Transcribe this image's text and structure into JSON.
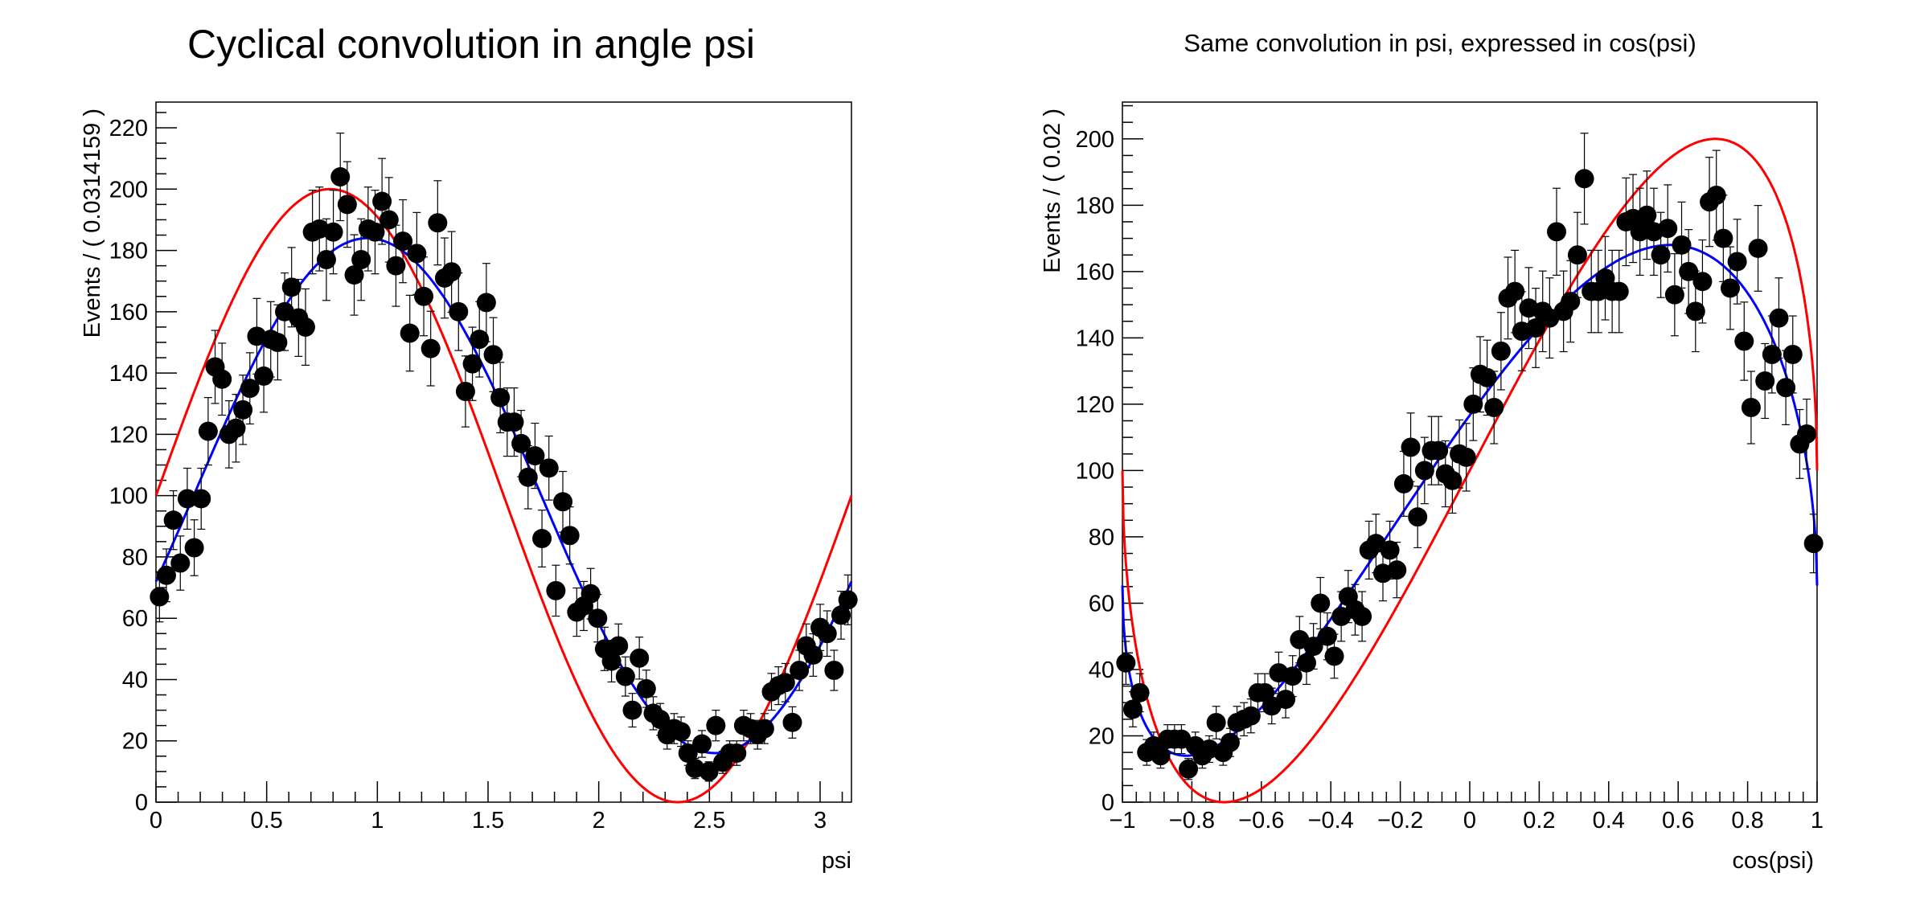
{
  "chart_data": [
    {
      "type": "scatter",
      "title": "Cyclical convolution in angle psi",
      "xlabel": "psi",
      "ylabel": "Events / ( 0.0314159 )",
      "xlim": [
        0,
        3.14159
      ],
      "ylim": [
        0,
        228.4
      ],
      "bin_width": 0.0314159,
      "x_ticks": [
        0,
        0.5,
        1,
        1.5,
        2,
        2.5,
        3
      ],
      "x_tick_labels": [
        "0",
        "0.5",
        "1",
        "1.5",
        "2",
        "2.5",
        "3"
      ],
      "y_ticks": [
        0,
        20,
        40,
        60,
        80,
        100,
        120,
        140,
        160,
        180,
        200,
        220
      ],
      "y_tick_labels": [
        "0",
        "20",
        "40",
        "60",
        "80",
        "100",
        "120",
        "140",
        "160",
        "180",
        "200",
        "220"
      ],
      "values": [
        67,
        74,
        92,
        78,
        99,
        83,
        99,
        121,
        142,
        138,
        120,
        122,
        128,
        135,
        152,
        139,
        151,
        150,
        160,
        168,
        158,
        155,
        186,
        187,
        177,
        186,
        204,
        195,
        172,
        177,
        187,
        186,
        196,
        190,
        175,
        183,
        153,
        179,
        165,
        148,
        189,
        171,
        173,
        160,
        134,
        143,
        151,
        163,
        146,
        132,
        124,
        124,
        117,
        106,
        113,
        86,
        109,
        69,
        98,
        87,
        62,
        64,
        68,
        60,
        50,
        46,
        51,
        41,
        30,
        47,
        37,
        29,
        27,
        22,
        24,
        23,
        16,
        11,
        19,
        10,
        25,
        13,
        16,
        16,
        25,
        24,
        22,
        24,
        36,
        38,
        39,
        26,
        43,
        51,
        48,
        57,
        55,
        43,
        61,
        66
      ],
      "curves": [
        {
          "color": "#ff0000",
          "description_shown": false
        },
        {
          "color": "#0000ff",
          "description_shown": false
        }
      ],
      "marker_color": "#000000"
    },
    {
      "type": "scatter",
      "title": "Same convolution in psi, expressed in cos(psi)",
      "xlabel": "cos(psi)",
      "ylabel": "Events / ( 0.02 )",
      "xlim": [
        -1,
        1
      ],
      "ylim": [
        0,
        211.1
      ],
      "bin_width": 0.02,
      "x_ticks": [
        -1,
        -0.8,
        -0.6,
        -0.4,
        -0.2,
        0,
        0.2,
        0.4,
        0.6,
        0.8,
        1
      ],
      "x_tick_labels": [
        "−1",
        "−0.8",
        "−0.6",
        "−0.4",
        "−0.2",
        "0",
        "0.2",
        "0.4",
        "0.6",
        "0.8",
        "1"
      ],
      "y_ticks": [
        0,
        20,
        40,
        60,
        80,
        100,
        120,
        140,
        160,
        180,
        200
      ],
      "y_tick_labels": [
        "0",
        "20",
        "40",
        "60",
        "80",
        "100",
        "120",
        "140",
        "160",
        "180",
        "200"
      ],
      "values": [
        42,
        28,
        33,
        15,
        17,
        14,
        19,
        19,
        19,
        10,
        17,
        14,
        16,
        24,
        15,
        18,
        24,
        25,
        26,
        33,
        33,
        29,
        39,
        31,
        38,
        49,
        42,
        47,
        60,
        50,
        44,
        56,
        62,
        58,
        56,
        76,
        78,
        69,
        76,
        70,
        96,
        107,
        86,
        100,
        106,
        106,
        99,
        97,
        105,
        104,
        120,
        129,
        128,
        119,
        136,
        152,
        154,
        142,
        149,
        143,
        148,
        146,
        172,
        148,
        151,
        165,
        188,
        154,
        154,
        158,
        154,
        154,
        175,
        176,
        172,
        177,
        172,
        165,
        173,
        153,
        168,
        160,
        148,
        157,
        181,
        183,
        170,
        155,
        163,
        139,
        119,
        167,
        127,
        135,
        146,
        125,
        135,
        108,
        111,
        78
      ],
      "curves": [
        {
          "color": "#ff0000",
          "description_shown": false
        },
        {
          "color": "#0000ff",
          "description_shown": false
        }
      ],
      "marker_color": "#000000"
    }
  ]
}
